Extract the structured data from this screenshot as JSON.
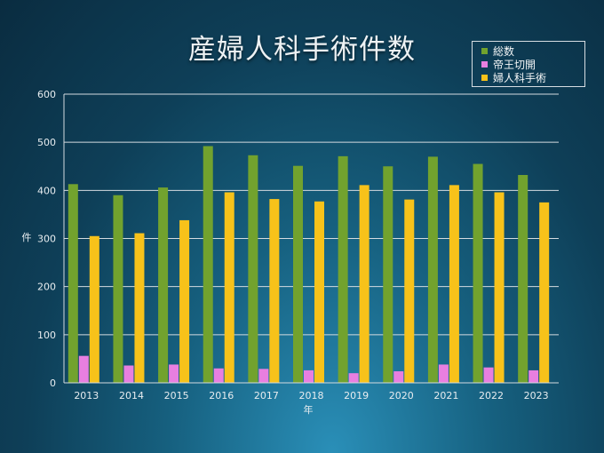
{
  "chart_data": {
    "type": "bar",
    "title": "産婦人科手術件数",
    "xlabel": "年",
    "ylabel": "件",
    "categories": [
      "2013",
      "2014",
      "2015",
      "2016",
      "2017",
      "2018",
      "2019",
      "2020",
      "2021",
      "2022",
      "2023"
    ],
    "ylim": [
      0,
      600
    ],
    "yticks": [
      0,
      100,
      200,
      300,
      400,
      500,
      600
    ],
    "grid": true,
    "legend_position": "top-right",
    "series": [
      {
        "name": "総数",
        "color": "#72a22e",
        "values": [
          413,
          390,
          406,
          492,
          473,
          451,
          471,
          450,
          470,
          455,
          432
        ]
      },
      {
        "name": "帝王切開",
        "color": "#e87fe0",
        "values": [
          56,
          36,
          38,
          30,
          29,
          26,
          20,
          24,
          38,
          32,
          26
        ]
      },
      {
        "name": "婦人科手術",
        "color": "#f7c21a",
        "values": [
          305,
          311,
          338,
          396,
          382,
          377,
          411,
          381,
          411,
          396,
          375
        ]
      }
    ]
  }
}
